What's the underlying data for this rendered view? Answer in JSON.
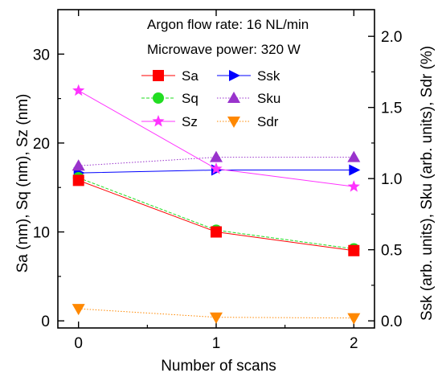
{
  "chart_data": {
    "type": "line",
    "x": [
      0,
      1,
      2
    ],
    "xlim": [
      -0.15,
      2.15
    ],
    "xticks": [
      "0",
      "1",
      "2"
    ],
    "xlabel": "Number of scans",
    "ylabel_left": "Sa (nm), Sq (nm), Sz (nm)",
    "ylabel_right": "Ssk (arb. units), Sku (arb. units), Sdr (%)",
    "ylim_left": [
      -0.8,
      35
    ],
    "ylim_right": [
      -0.05,
      2.1875
    ],
    "yticks_left": [
      "0",
      "10",
      "20",
      "30"
    ],
    "yticks_left_values": [
      0,
      10,
      20,
      30
    ],
    "yticks_right": [
      "0.0",
      "0.5",
      "1.0",
      "1.5",
      "2.0"
    ],
    "yticks_right_values": [
      0,
      0.5,
      1.0,
      1.5,
      2.0
    ],
    "annotations": [
      "Argon flow rate: 16 NL/min",
      "Microwave power: 320 W"
    ],
    "legend_position": "top-right",
    "series": [
      {
        "name": "Sa",
        "axis": "left",
        "values": [
          15.8,
          10.0,
          7.9
        ],
        "color": "#ff0000",
        "marker": "square",
        "dash": "solid"
      },
      {
        "name": "Sq",
        "axis": "left",
        "values": [
          16.1,
          10.2,
          8.1
        ],
        "color": "#22dd22",
        "marker": "circle",
        "dash": "dashed"
      },
      {
        "name": "Sz",
        "axis": "left",
        "values": [
          25.9,
          17.1,
          15.1
        ],
        "color": "#ff33ff",
        "marker": "star",
        "dash": "solid"
      },
      {
        "name": "Ssk",
        "axis": "right",
        "values": [
          1.04,
          1.06,
          1.06
        ],
        "color": "#0000ff",
        "marker": "triangle-right",
        "dash": "solid"
      },
      {
        "name": "Sku",
        "axis": "right",
        "values": [
          1.09,
          1.15,
          1.15
        ],
        "color": "#9933cc",
        "marker": "triangle-up",
        "dash": "dotted"
      },
      {
        "name": "Sdr",
        "axis": "right",
        "values": [
          0.085,
          0.025,
          0.02
        ],
        "color": "#ff8800",
        "marker": "triangle-down",
        "dash": "dotted"
      }
    ]
  }
}
